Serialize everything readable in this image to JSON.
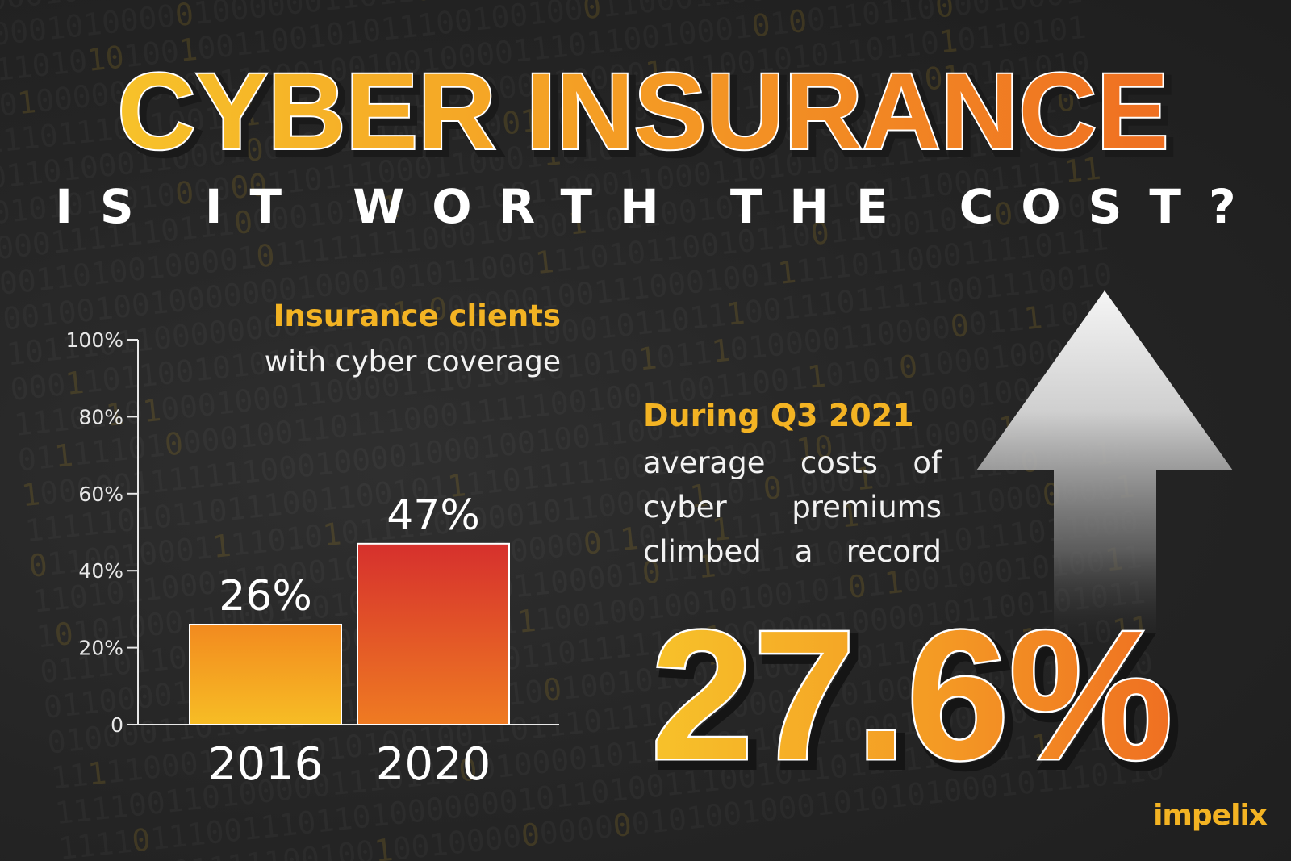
{
  "header": {
    "title": "CYBER INSURANCE",
    "subtitle": "IS IT WORTH THE COST?"
  },
  "colors": {
    "background": "#262626",
    "accent_yellow": "#f3b323",
    "accent_orange": "#ef7b22",
    "accent_red": "#d7342b",
    "text_white": "#ffffff"
  },
  "chart_data": {
    "type": "bar",
    "title": "Insurance clients",
    "subtitle": "with cyber coverage",
    "categories": [
      "2016",
      "2020"
    ],
    "values": [
      26,
      47
    ],
    "data_labels": [
      "26%",
      "47%"
    ],
    "ylim": [
      0,
      100
    ],
    "yticks": [
      0,
      20,
      40,
      60,
      80,
      100
    ],
    "ytick_labels": [
      "0",
      "20%",
      "40%",
      "60%",
      "80%",
      "100%"
    ],
    "grid": false,
    "legend": "none"
  },
  "stat_panel": {
    "heading": "During Q3 2021",
    "lines": [
      "average costs of",
      "cyber premiums",
      "climbed a record"
    ],
    "big_value": "27.6%",
    "arrow": "up-arrow-icon"
  },
  "brand": {
    "logo_text": "impelix"
  }
}
